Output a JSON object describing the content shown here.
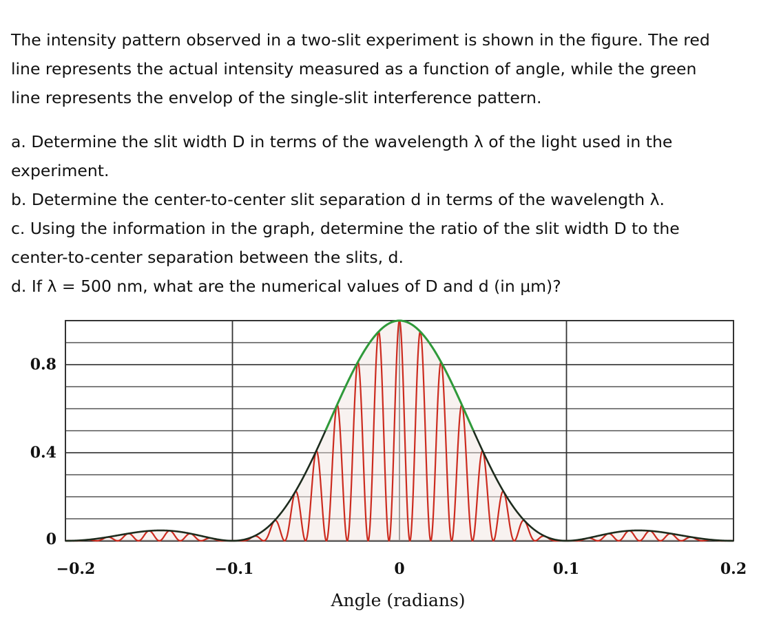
{
  "intro_lines": [
    "The intensity pattern observed in a two-slit experiment is shown in the figure. The red",
    "line represents the actual intensity measured as a function of angle, while the green",
    "line represents the envelop of the single-slit interference pattern."
  ],
  "questions": [
    "a. Determine the slit width D in terms of the wavelength λ of the light used in the",
    "experiment.",
    "b. Determine the center-to-center slit separation d in terms of the wavelength λ.",
    "c. Using the information in the graph, determine the ratio of the slit width D to the",
    "center-to-center separation between the slits, d.",
    "d. If λ = 500 nm, what are the numerical values of D and d (in μm)?"
  ],
  "chart_data": {
    "type": "line",
    "title": "",
    "xlabel": "Angle (radians)",
    "ylabel": "",
    "xlim": [
      -0.2,
      0.2
    ],
    "ylim": [
      0,
      1.0
    ],
    "x_tick_labels": [
      "−0.2",
      "−0.1",
      "0",
      "0.1",
      "0.2"
    ],
    "x_ticks": [
      -0.2,
      -0.1,
      0,
      0.1,
      0.2
    ],
    "y_tick_labels": [
      "0",
      "0.4",
      "0.8"
    ],
    "y_ticks": [
      0,
      0.4,
      0.8
    ],
    "grid": true,
    "series": [
      {
        "role": "actual intensity",
        "color": "#cc2a1e",
        "single_slit_zero_angle": 0.1,
        "two_slit_fringe_spacing": 0.0125,
        "peak": 1.0
      },
      {
        "role": "single-slit envelope",
        "color": "#2f9a3a",
        "single_slit_zero_angle": 0.1,
        "peak": 1.0
      }
    ]
  }
}
